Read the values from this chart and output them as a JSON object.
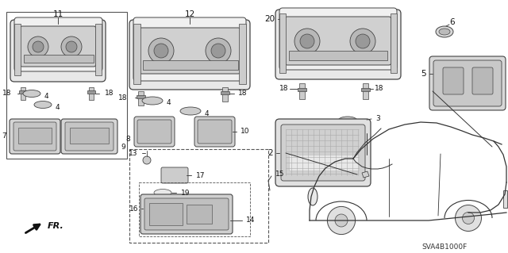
{
  "background_color": "#ffffff",
  "diagram_code": "SVA4B1000F",
  "line_color": "#444444",
  "label_color": "#111111",
  "label_fontsize": 7.5,
  "small_fontsize": 6.5,
  "diagram_code_fontsize": 6.5
}
